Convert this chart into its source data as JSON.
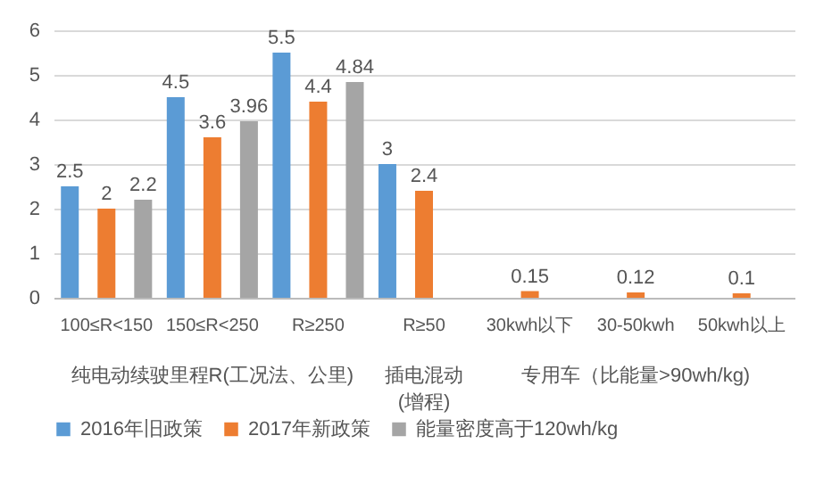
{
  "chart_data": {
    "type": "bar",
    "categories": [
      "100≤R<150",
      "150≤R<250",
      "R≥250",
      "R≥50",
      "30kwh以下",
      "30-50kwh",
      "50kwh以上"
    ],
    "series": [
      {
        "name": "2016年旧政策",
        "color": "#5b9bd5",
        "values": [
          2.5,
          4.5,
          5.5,
          3,
          null,
          null,
          null
        ]
      },
      {
        "name": "2017年新政策",
        "color": "#ed7d31",
        "values": [
          2,
          3.6,
          4.4,
          2.4,
          0.15,
          0.12,
          0.1
        ]
      },
      {
        "name": "能量密度高于120wh/kg",
        "color": "#a5a5a5",
        "values": [
          2.2,
          3.96,
          4.84,
          null,
          null,
          null,
          null
        ]
      }
    ],
    "ylim": [
      0,
      6
    ],
    "yticks": [
      0,
      1,
      2,
      3,
      4,
      5,
      6
    ],
    "grid": "y",
    "legend": "bottom",
    "data_labels": true,
    "annotations": [
      "纯电动续驶里程R(工况法、公里)",
      "插电混动\n(增程)",
      "专用车（比能量>90wh/kg)"
    ]
  }
}
